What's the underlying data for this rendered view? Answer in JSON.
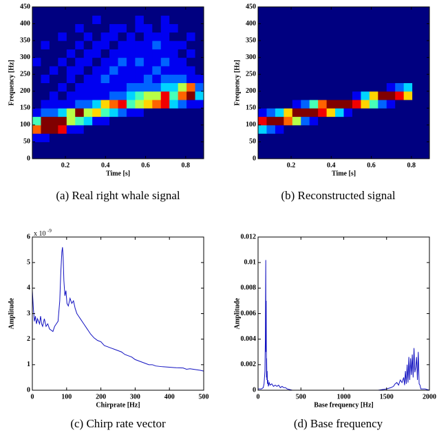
{
  "chart_data": [
    {
      "type": "heatmap",
      "caption": "(a)  Real right whale signal",
      "xlabel": "Time [s]",
      "ylabel": "Frequency [Hz]",
      "xlim": [
        0.035,
        0.89
      ],
      "ylim": [
        0,
        450
      ],
      "xticks": [
        0.2,
        0.4,
        0.6,
        0.8
      ],
      "yticks": [
        0,
        50,
        100,
        150,
        200,
        250,
        300,
        350,
        400,
        450
      ],
      "clim": [
        0,
        9
      ],
      "colormap": "jet",
      "values": [
        [
          0,
          0,
          0,
          0,
          0,
          0,
          0,
          0,
          0,
          0,
          0,
          0,
          0,
          0,
          0,
          0,
          0,
          0,
          0,
          0
        ],
        [
          0,
          0,
          0,
          0,
          0,
          0,
          0,
          0,
          0,
          0,
          0,
          0,
          0,
          0,
          0,
          0,
          0,
          0,
          0,
          0
        ],
        [
          1,
          1,
          0,
          0,
          0,
          0,
          0,
          0,
          0,
          0,
          0,
          0,
          0,
          0,
          0,
          0,
          0,
          0,
          0,
          0
        ],
        [
          7,
          9,
          9,
          8,
          1,
          1,
          0,
          0,
          0,
          0,
          0,
          0,
          0,
          0,
          0,
          0,
          0,
          0,
          0,
          0
        ],
        [
          4,
          9,
          9,
          9,
          5,
          4,
          3,
          1,
          1,
          0,
          0,
          0,
          0,
          0,
          0,
          0,
          0,
          0,
          0,
          0
        ],
        [
          1,
          2,
          2,
          3,
          5,
          9,
          5,
          6,
          4,
          3,
          2,
          1,
          1,
          0,
          0,
          0,
          0,
          0,
          0,
          0
        ],
        [
          0,
          1,
          1,
          1,
          1,
          2,
          2,
          3,
          6,
          7,
          8,
          4,
          5,
          6,
          7,
          8,
          3,
          2,
          1,
          1
        ],
        [
          0,
          0,
          1,
          0,
          1,
          1,
          1,
          1,
          1,
          2,
          2,
          3,
          4,
          5,
          5,
          8,
          4,
          7,
          9,
          3
        ],
        [
          0,
          0,
          0,
          1,
          0,
          1,
          1,
          1,
          1,
          1,
          1,
          2,
          2,
          2,
          2,
          3,
          3,
          5,
          7,
          2
        ],
        [
          0,
          1,
          0,
          0,
          1,
          0,
          1,
          1,
          2,
          1,
          1,
          1,
          1,
          2,
          1,
          2,
          2,
          2,
          1,
          1
        ],
        [
          0,
          0,
          1,
          0,
          1,
          1,
          0,
          1,
          1,
          2,
          1,
          1,
          1,
          1,
          2,
          1,
          1,
          1,
          1,
          0
        ],
        [
          1,
          0,
          0,
          1,
          0,
          1,
          1,
          0,
          1,
          1,
          2,
          1,
          2,
          1,
          1,
          2,
          1,
          1,
          0,
          0
        ],
        [
          0,
          0,
          0,
          0,
          1,
          0,
          1,
          1,
          0,
          1,
          1,
          1,
          1,
          1,
          1,
          1,
          1,
          0,
          1,
          0
        ],
        [
          0,
          1,
          0,
          0,
          0,
          1,
          0,
          1,
          1,
          0,
          1,
          1,
          1,
          1,
          2,
          1,
          1,
          1,
          0,
          0
        ],
        [
          0,
          0,
          0,
          1,
          0,
          0,
          1,
          0,
          1,
          1,
          0,
          1,
          0,
          1,
          1,
          1,
          0,
          0,
          1,
          0
        ],
        [
          0,
          0,
          0,
          0,
          0,
          1,
          0,
          0,
          0,
          1,
          1,
          0,
          1,
          1,
          0,
          1,
          1,
          0,
          0,
          0
        ],
        [
          0,
          0,
          0,
          0,
          0,
          0,
          0,
          1,
          0,
          0,
          0,
          0,
          1,
          0,
          0,
          1,
          0,
          0,
          0,
          0
        ],
        [
          0,
          0,
          0,
          0,
          0,
          0,
          0,
          0,
          0,
          0,
          0,
          0,
          0,
          0,
          0,
          0,
          0,
          0,
          0,
          0
        ]
      ]
    },
    {
      "type": "heatmap",
      "caption": "(b)  Reconstructed signal",
      "xlabel": "Time [s]",
      "ylabel": "Frequency [Hz]",
      "xlim": [
        0.035,
        0.89
      ],
      "ylim": [
        0,
        450
      ],
      "xticks": [
        0.2,
        0.4,
        0.6,
        0.8
      ],
      "yticks": [
        0,
        50,
        100,
        150,
        200,
        250,
        300,
        350,
        400,
        450
      ],
      "clim": [
        0,
        9
      ],
      "colormap": "jet",
      "values": [
        [
          0,
          0,
          0,
          0,
          0,
          0,
          0,
          0,
          0,
          0,
          0,
          0,
          0,
          0,
          0,
          0,
          0,
          0,
          0,
          0
        ],
        [
          0,
          0,
          0,
          0,
          0,
          0,
          0,
          0,
          0,
          0,
          0,
          0,
          0,
          0,
          0,
          0,
          0,
          0,
          0,
          0
        ],
        [
          0,
          0,
          0,
          0,
          0,
          0,
          0,
          0,
          0,
          0,
          0,
          0,
          0,
          0,
          0,
          0,
          0,
          0,
          0,
          0
        ],
        [
          3,
          2,
          1,
          0,
          0,
          0,
          0,
          0,
          0,
          0,
          0,
          0,
          0,
          0,
          0,
          0,
          0,
          0,
          0,
          0
        ],
        [
          8,
          9,
          9,
          7,
          5,
          2,
          1,
          0,
          0,
          0,
          0,
          0,
          0,
          0,
          0,
          0,
          0,
          0,
          0,
          0
        ],
        [
          1,
          2,
          3,
          6,
          9,
          9,
          9,
          8,
          6,
          3,
          1,
          0,
          0,
          0,
          0,
          0,
          0,
          0,
          0,
          0
        ],
        [
          0,
          0,
          0,
          0,
          1,
          2,
          4,
          7,
          9,
          9,
          9,
          8,
          6,
          4,
          2,
          1,
          0,
          0,
          0,
          0
        ],
        [
          0,
          0,
          0,
          0,
          0,
          0,
          0,
          0,
          0,
          0,
          0,
          1,
          3,
          6,
          9,
          9,
          8,
          6,
          0,
          0
        ],
        [
          0,
          0,
          0,
          0,
          0,
          0,
          0,
          0,
          0,
          0,
          0,
          0,
          0,
          0,
          0,
          1,
          2,
          3,
          0,
          0
        ],
        [
          0,
          0,
          0,
          0,
          0,
          0,
          0,
          0,
          0,
          0,
          0,
          0,
          0,
          0,
          0,
          0,
          0,
          0,
          0,
          0
        ],
        [
          0,
          0,
          0,
          0,
          0,
          0,
          0,
          0,
          0,
          0,
          0,
          0,
          0,
          0,
          0,
          0,
          0,
          0,
          0,
          0
        ],
        [
          0,
          0,
          0,
          0,
          0,
          0,
          0,
          0,
          0,
          0,
          0,
          0,
          0,
          0,
          0,
          0,
          0,
          0,
          0,
          0
        ],
        [
          0,
          0,
          0,
          0,
          0,
          0,
          0,
          0,
          0,
          0,
          0,
          0,
          0,
          0,
          0,
          0,
          0,
          0,
          0,
          0
        ],
        [
          0,
          0,
          0,
          0,
          0,
          0,
          0,
          0,
          0,
          0,
          0,
          0,
          0,
          0,
          0,
          0,
          0,
          0,
          0,
          0
        ],
        [
          0,
          0,
          0,
          0,
          0,
          0,
          0,
          0,
          0,
          0,
          0,
          0,
          0,
          0,
          0,
          0,
          0,
          0,
          0,
          0
        ],
        [
          0,
          0,
          0,
          0,
          0,
          0,
          0,
          0,
          0,
          0,
          0,
          0,
          0,
          0,
          0,
          0,
          0,
          0,
          0,
          0
        ],
        [
          0,
          0,
          0,
          0,
          0,
          0,
          0,
          0,
          0,
          0,
          0,
          0,
          0,
          0,
          0,
          0,
          0,
          0,
          0,
          0
        ],
        [
          0,
          0,
          0,
          0,
          0,
          0,
          0,
          0,
          0,
          0,
          0,
          0,
          0,
          0,
          0,
          0,
          0,
          0,
          0,
          0
        ]
      ]
    },
    {
      "type": "line",
      "caption": "(c)  Chirp rate vector",
      "xlabel": "Chirprate [Hz]",
      "ylabel": "Amplitude",
      "y_multiplier": {
        "base": "x 10",
        "exponent": "-9"
      },
      "xlim": [
        0,
        500
      ],
      "ylim": [
        0,
        6
      ],
      "xticks": [
        0,
        100,
        200,
        300,
        400,
        500
      ],
      "yticks": [
        0,
        1,
        2,
        3,
        4,
        5,
        6
      ],
      "x": [
        0,
        3,
        6,
        9,
        12,
        15,
        18,
        21,
        24,
        27,
        30,
        35,
        40,
        45,
        50,
        55,
        60,
        65,
        70,
        75,
        80,
        83,
        86,
        88,
        90,
        92,
        95,
        98,
        101,
        105,
        110,
        115,
        120,
        125,
        130,
        135,
        140,
        150,
        160,
        170,
        180,
        190,
        200,
        210,
        220,
        230,
        240,
        250,
        260,
        270,
        280,
        290,
        300,
        310,
        320,
        330,
        340,
        350,
        360,
        380,
        400,
        420,
        440,
        450,
        460,
        470,
        480,
        490,
        500
      ],
      "series": [
        {
          "color": "#1010c0",
          "values": [
            3.9,
            3.2,
            2.7,
            2.9,
            2.6,
            2.8,
            2.7,
            2.6,
            2.9,
            2.6,
            2.5,
            2.8,
            2.5,
            2.6,
            2.4,
            2.35,
            2.3,
            2.5,
            2.6,
            2.7,
            3.5,
            4.6,
            5.4,
            5.6,
            5.2,
            4.3,
            3.7,
            3.9,
            3.4,
            3.3,
            3.6,
            3.4,
            3.5,
            3.2,
            3.0,
            2.9,
            2.8,
            2.6,
            2.4,
            2.2,
            2.05,
            1.95,
            1.9,
            1.75,
            1.7,
            1.65,
            1.6,
            1.55,
            1.5,
            1.4,
            1.35,
            1.3,
            1.2,
            1.15,
            1.1,
            1.05,
            1.0,
            1.0,
            0.95,
            0.92,
            0.9,
            0.88,
            0.87,
            0.82,
            0.84,
            0.82,
            0.8,
            0.78,
            0.75
          ]
        }
      ]
    },
    {
      "type": "line",
      "caption": "(d)  Base frequency",
      "xlabel": "Base frequency [Hz]",
      "ylabel": "Amplitude",
      "xlim": [
        0,
        2000
      ],
      "ylim": [
        0,
        0.012
      ],
      "xticks": [
        0,
        500,
        1000,
        1500,
        2000
      ],
      "yticks": [
        0,
        0.002,
        0.004,
        0.006,
        0.008,
        0.01,
        0.012
      ],
      "x": [
        0,
        40,
        60,
        70,
        80,
        85,
        90,
        92,
        95,
        98,
        100,
        103,
        106,
        110,
        115,
        120,
        130,
        140,
        160,
        180,
        200,
        220,
        240,
        260,
        280,
        300,
        320,
        340,
        400,
        600,
        800,
        1000,
        1200,
        1400,
        1500,
        1550,
        1580,
        1600,
        1620,
        1640,
        1660,
        1680,
        1700,
        1710,
        1720,
        1730,
        1740,
        1750,
        1760,
        1770,
        1780,
        1790,
        1800,
        1810,
        1820,
        1830,
        1840,
        1850,
        1860,
        1870,
        1880,
        1890,
        1900,
        1950,
        2000
      ],
      "series": [
        {
          "color": "#1010c0",
          "values": [
            0.0001,
            0.0001,
            0.0002,
            0.0005,
            0.0015,
            0.004,
            0.0102,
            0.003,
            0.007,
            0.001,
            0.0025,
            0.0008,
            0.0015,
            0.0005,
            0.0008,
            0.0003,
            0.0006,
            0.0004,
            0.0005,
            0.0003,
            0.0004,
            0.0003,
            0.0004,
            0.0002,
            0.0003,
            0.0002,
            0.0002,
            0.0001,
            0,
            0,
            0,
            0,
            0,
            0,
            0.0001,
            0.0002,
            0.0003,
            0.0005,
            0.0006,
            0.0004,
            0.0008,
            0.0006,
            0.001,
            0.0004,
            0.0015,
            0.0005,
            0.002,
            0.0006,
            0.0026,
            0.0008,
            0.0025,
            0.0012,
            0.0028,
            0.001,
            0.0033,
            0.0014,
            0.0018,
            0.0026,
            0.0008,
            0.003,
            0.0005,
            0.0004,
            0.0001,
            0.0001,
            0
          ]
        }
      ]
    }
  ]
}
